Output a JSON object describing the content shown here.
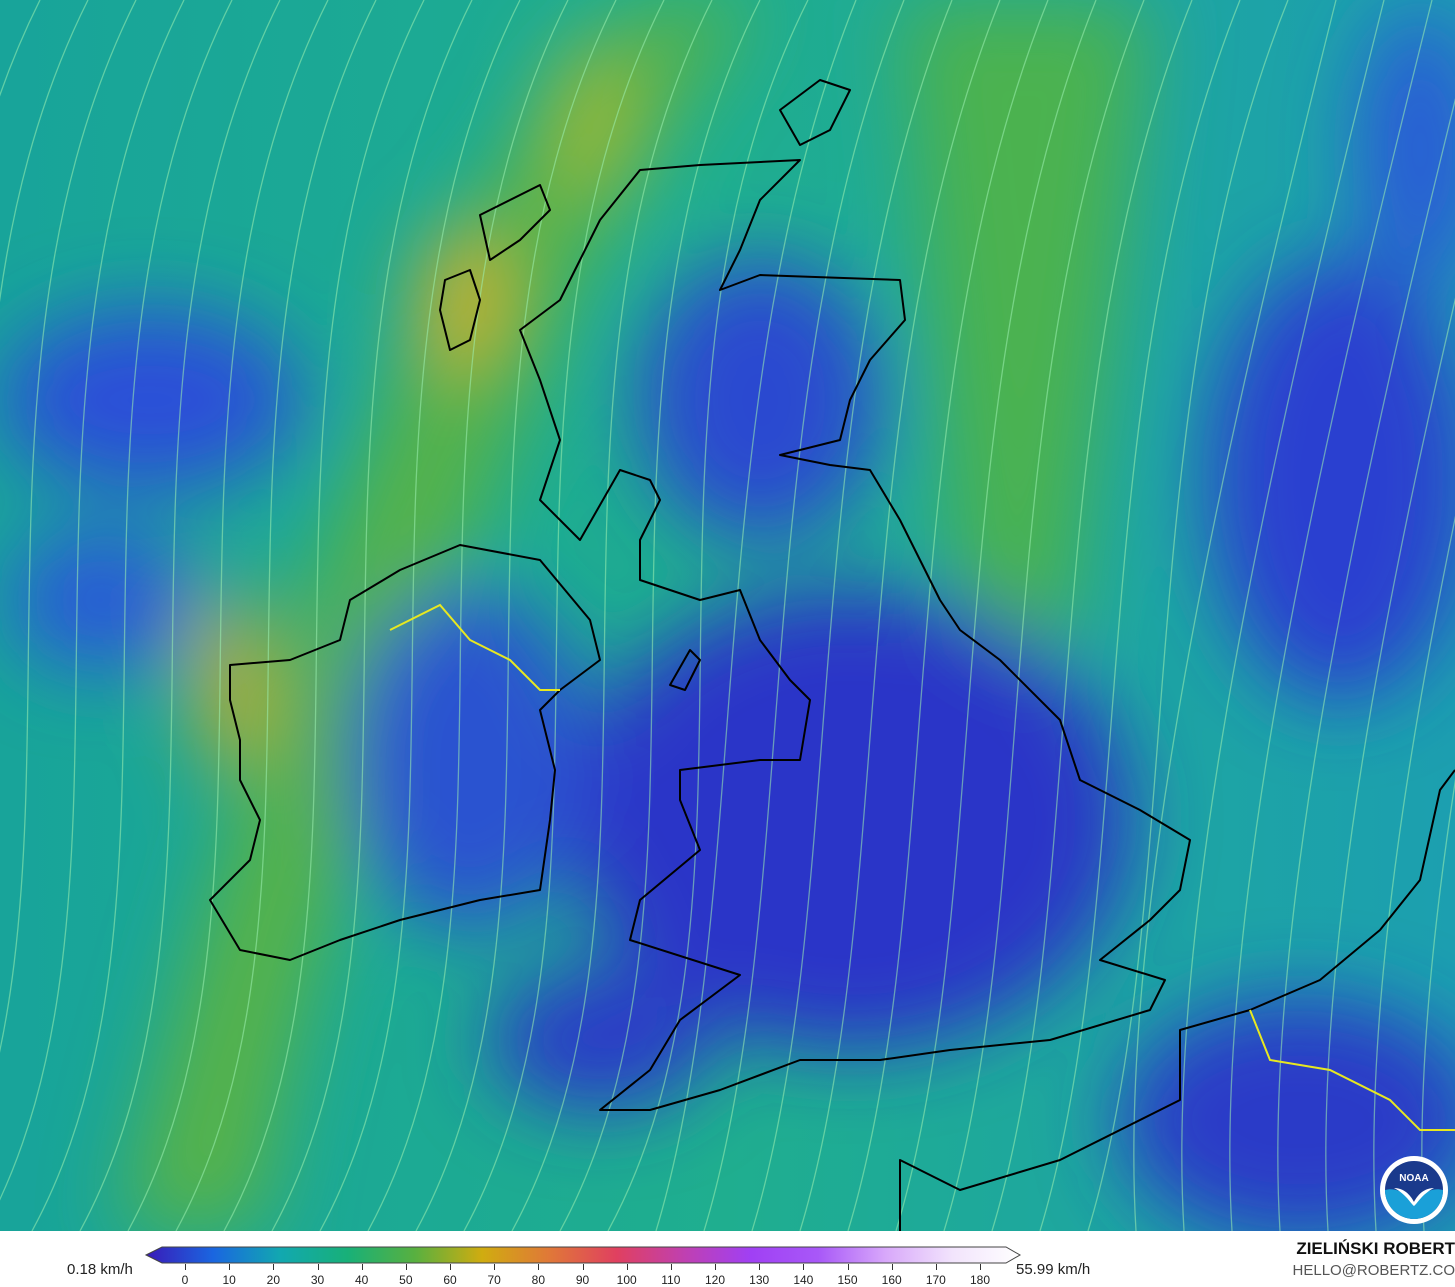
{
  "map": {
    "variable": "wind speed",
    "colors": {
      "ocean_base": "#1fae8f",
      "low_wind": "#2a3fd0",
      "high_wind": "#d4b020",
      "coastline": "#000000",
      "border": "#b8b8d8",
      "ni_border": "#e8e820",
      "streamline": "#9cf0b0"
    }
  },
  "legend": {
    "min_label": "0.18 km/h",
    "max_label": "55.99 km/h",
    "ticks": [
      "0",
      "10",
      "20",
      "30",
      "40",
      "50",
      "60",
      "70",
      "80",
      "90",
      "100",
      "110",
      "120",
      "130",
      "140",
      "150",
      "160",
      "170",
      "180"
    ],
    "gradient": [
      "#3a1ab8",
      "#1a66e0",
      "#12a8b0",
      "#18b078",
      "#58b040",
      "#d0ac10",
      "#e07838",
      "#e04060",
      "#c040b0",
      "#a040f4",
      "#a858f8",
      "#d8a8fa",
      "#f2e4fc",
      "#ffffff"
    ]
  },
  "credits": {
    "author": "ZIELIŃSKI ROBERT",
    "email": "HELLO@ROBERTZ.CO",
    "logo_text": "NOAA"
  }
}
